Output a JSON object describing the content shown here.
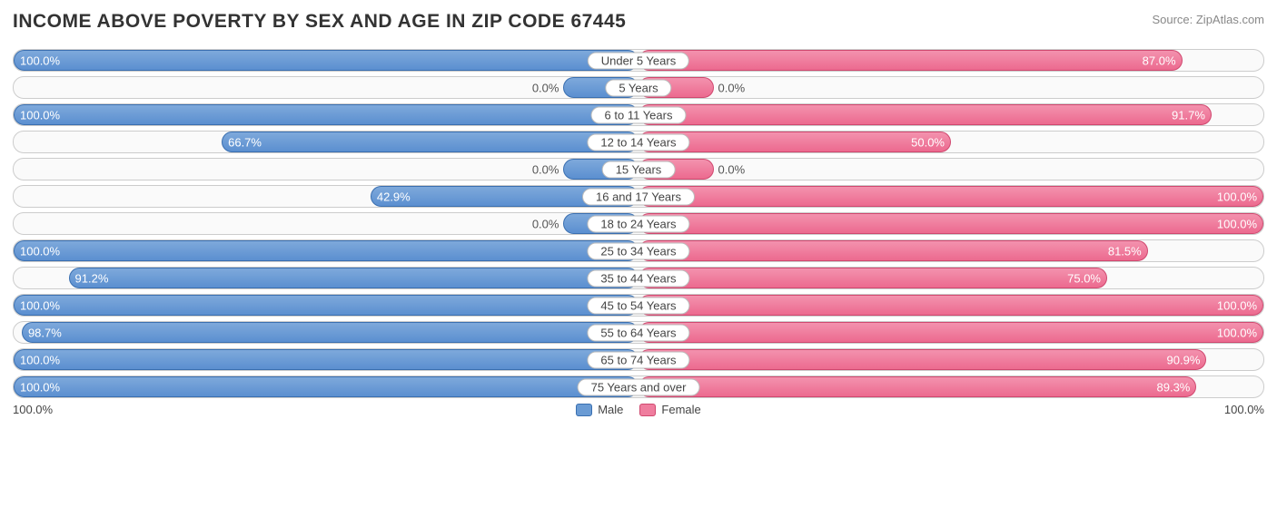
{
  "title": "INCOME ABOVE POVERTY BY SEX AND AGE IN ZIP CODE 67445",
  "source": "Source: ZipAtlas.com",
  "axis_left": "100.0%",
  "axis_right": "100.0%",
  "legend": {
    "male": "Male",
    "female": "Female"
  },
  "chart": {
    "type": "diverging-bar",
    "male_fill": "#6a9bd4",
    "male_border": "#3a6fb0",
    "female_fill": "#ef7d9e",
    "female_border": "#d0486f",
    "track_bg": "#fafafa",
    "track_border": "#cccccc",
    "min_bar_pct": 12,
    "value_inside_threshold": 30,
    "rows": [
      {
        "label": "Under 5 Years",
        "male": 100.0,
        "female": 87.0
      },
      {
        "label": "5 Years",
        "male": 0.0,
        "female": 0.0
      },
      {
        "label": "6 to 11 Years",
        "male": 100.0,
        "female": 91.7
      },
      {
        "label": "12 to 14 Years",
        "male": 66.7,
        "female": 50.0
      },
      {
        "label": "15 Years",
        "male": 0.0,
        "female": 0.0
      },
      {
        "label": "16 and 17 Years",
        "male": 42.9,
        "female": 100.0
      },
      {
        "label": "18 to 24 Years",
        "male": 0.0,
        "female": 100.0
      },
      {
        "label": "25 to 34 Years",
        "male": 100.0,
        "female": 81.5
      },
      {
        "label": "35 to 44 Years",
        "male": 91.2,
        "female": 75.0
      },
      {
        "label": "45 to 54 Years",
        "male": 100.0,
        "female": 100.0
      },
      {
        "label": "55 to 64 Years",
        "male": 98.7,
        "female": 100.0
      },
      {
        "label": "65 to 74 Years",
        "male": 100.0,
        "female": 90.9
      },
      {
        "label": "75 Years and over",
        "male": 100.0,
        "female": 89.3
      }
    ]
  }
}
